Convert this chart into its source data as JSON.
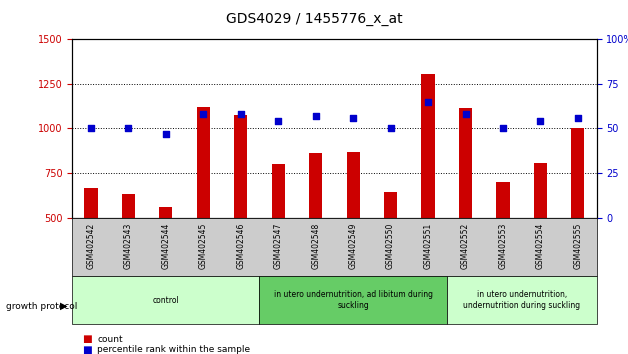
{
  "title": "GDS4029 / 1455776_x_at",
  "samples": [
    "GSM402542",
    "GSM402543",
    "GSM402544",
    "GSM402545",
    "GSM402546",
    "GSM402547",
    "GSM402548",
    "GSM402549",
    "GSM402550",
    "GSM402551",
    "GSM402552",
    "GSM402553",
    "GSM402554",
    "GSM402555"
  ],
  "count": [
    665,
    635,
    560,
    1120,
    1075,
    800,
    860,
    865,
    645,
    1305,
    1115,
    700,
    805,
    1000
  ],
  "percentile": [
    50,
    50,
    47,
    58,
    58,
    54,
    57,
    56,
    50,
    65,
    58,
    50,
    54,
    56
  ],
  "ylim_left": [
    500,
    1500
  ],
  "ylim_right": [
    0,
    100
  ],
  "yticks_left": [
    500,
    750,
    1000,
    1250,
    1500
  ],
  "yticks_right": [
    0,
    25,
    50,
    75,
    100
  ],
  "bar_color": "#cc0000",
  "dot_color": "#0000cc",
  "groups": [
    {
      "label": "control",
      "start": 0,
      "end": 5,
      "color": "#ccffcc"
    },
    {
      "label": "in utero undernutrition, ad libitum during\nsuckling",
      "start": 5,
      "end": 10,
      "color": "#66cc66"
    },
    {
      "label": "in utero undernutrition,\nundernutrition during suckling",
      "start": 10,
      "end": 14,
      "color": "#ccffcc"
    }
  ],
  "group_label": "growth protocol",
  "legend_count_label": "count",
  "legend_pct_label": "percentile rank within the sample",
  "tick_label_color": "#cc0000",
  "right_tick_color": "#0000cc",
  "bar_bottom": 500,
  "bar_width": 0.35
}
